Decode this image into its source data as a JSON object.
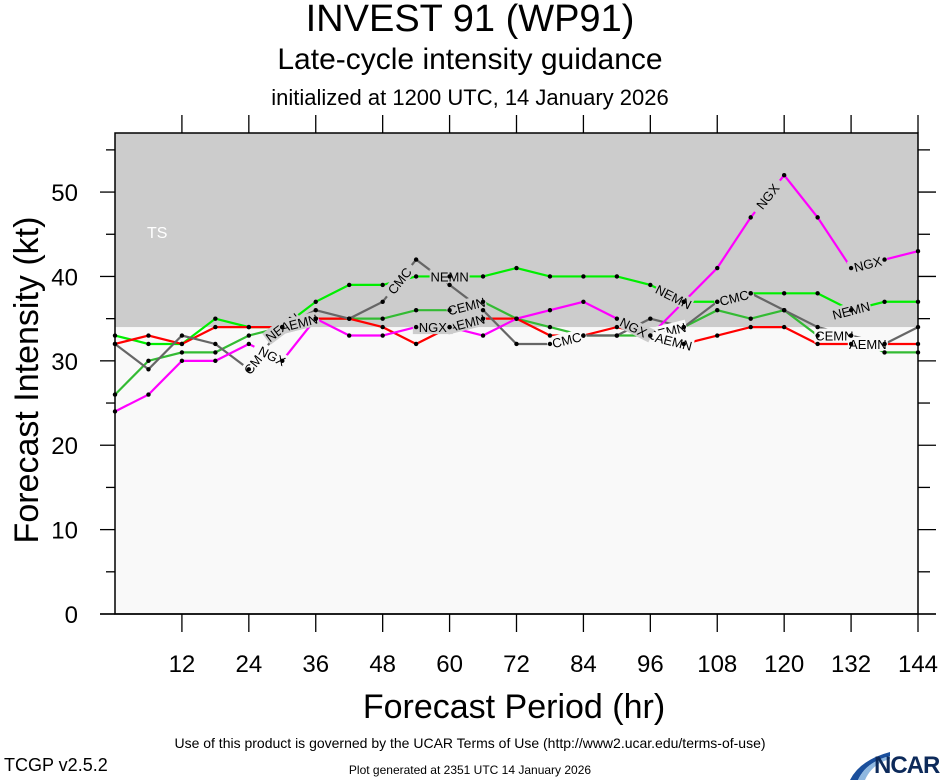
{
  "header": {
    "title": "INVEST 91 (WP91)",
    "subtitle": "Late-cycle intensity guidance",
    "init": "initialized at 1200 UTC, 14 January 2026"
  },
  "footer": {
    "terms": "Use of this product is governed by the UCAR Terms of Use (http://www2.ucar.edu/terms-of-use)",
    "version": "TCGP v2.5.2",
    "generated": "Plot generated at 2351 UTC   14 January 2026",
    "logo": "NCAR"
  },
  "chart_data": {
    "type": "line",
    "title": "INVEST 91 (WP91)",
    "xlabel": "Forecast Period (hr)",
    "ylabel": "Forecast Intensity (kt)",
    "xlim": [
      0,
      144
    ],
    "ylim": [
      0,
      57
    ],
    "xticks": [
      12,
      24,
      36,
      48,
      60,
      72,
      84,
      96,
      108,
      120,
      132,
      144
    ],
    "yticks": [
      0,
      10,
      20,
      30,
      40,
      50
    ],
    "grid": false,
    "band": {
      "label": "TS",
      "from": 34,
      "to": 57,
      "color": "#cccccc"
    },
    "band_below_color": "#f9f9f9",
    "x": [
      0,
      6,
      12,
      18,
      24,
      30,
      36,
      42,
      48,
      54,
      60,
      66,
      72,
      78,
      84,
      90,
      96,
      102,
      108,
      114,
      120,
      126,
      132,
      138,
      144
    ],
    "series": [
      {
        "name": "NEMN",
        "color": "#00ee00",
        "values": [
          33,
          32,
          32,
          35,
          34,
          34,
          37,
          39,
          39,
          40,
          40,
          40,
          41,
          40,
          40,
          40,
          39,
          37,
          37,
          38,
          38,
          38,
          36,
          37,
          37
        ],
        "label_at": [
          5,
          10,
          16.7,
          22
        ]
      },
      {
        "name": "CEMN",
        "color": "#33bb33",
        "values": [
          26,
          30,
          31,
          31,
          33,
          34,
          35,
          35,
          35,
          36,
          36,
          37,
          35,
          34,
          33,
          33,
          33,
          34,
          36,
          35,
          36,
          33,
          33,
          31,
          31
        ],
        "label_at": [
          5.5,
          10.5,
          16.5,
          21.5
        ]
      },
      {
        "name": "AEMN",
        "color": "#ff0000",
        "values": [
          32,
          33,
          32,
          34,
          34,
          34,
          35,
          35,
          34,
          32,
          34,
          35,
          35,
          33,
          33,
          34,
          33,
          32,
          33,
          34,
          34,
          32,
          32,
          32,
          32
        ],
        "label_at": [
          5.5,
          10.5,
          16.7,
          22.5
        ]
      },
      {
        "name": "CMC",
        "color": "#666666",
        "values": [
          32,
          29,
          33,
          32,
          29,
          34,
          36,
          35,
          37,
          42,
          39,
          36,
          32,
          32,
          33,
          33,
          35,
          34,
          37,
          38,
          36,
          34,
          33,
          32,
          34
        ],
        "label_at": [
          4.2,
          8.5,
          13.5,
          18.5
        ]
      },
      {
        "name": "NGX",
        "color": "#ff00ff",
        "values": [
          24,
          26,
          30,
          30,
          32,
          30,
          35,
          33,
          33,
          34,
          34,
          33,
          35,
          36,
          37,
          35,
          33,
          37,
          41,
          47,
          52,
          47,
          41,
          42,
          43
        ],
        "label_at": [
          4.7,
          9.5,
          15.5,
          19.5,
          22.5
        ]
      }
    ]
  }
}
